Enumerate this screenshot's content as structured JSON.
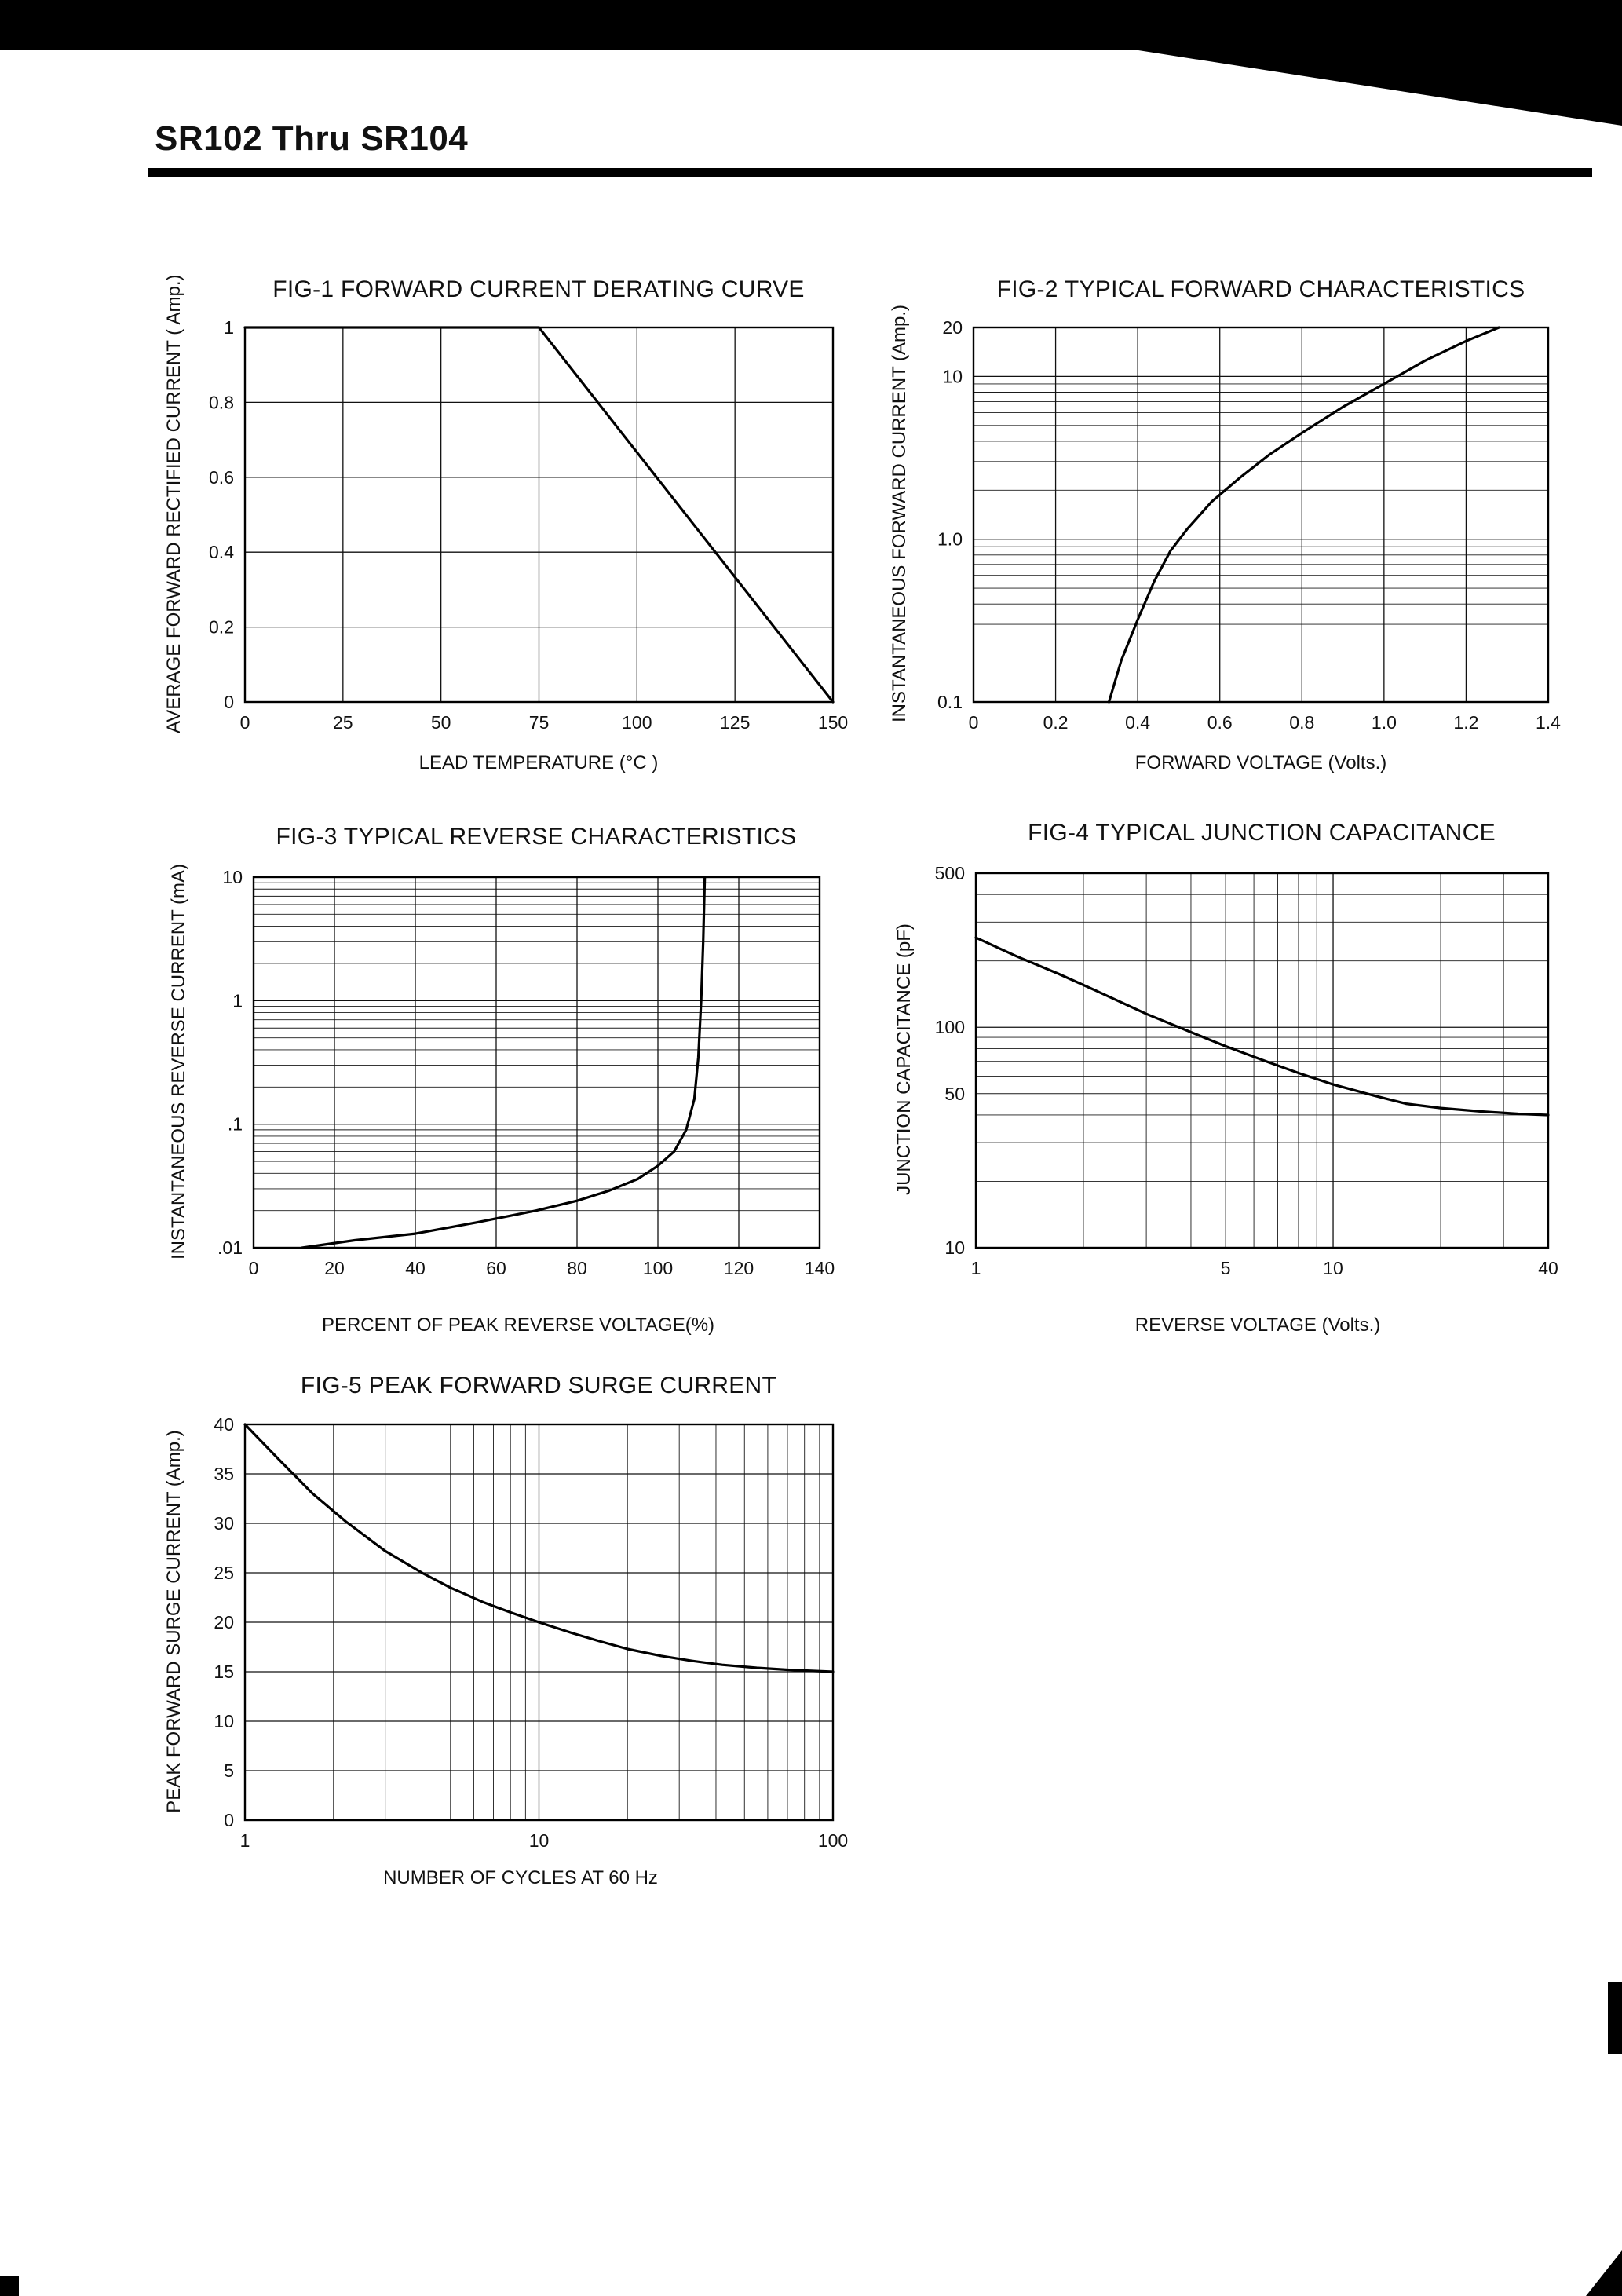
{
  "header": {
    "title": "SR102 Thru SR104"
  },
  "chart_data": [
    {
      "name": "fig1",
      "type": "line",
      "title": "FIG-1 FORWARD CURRENT DERATING CURVE",
      "xlabel": "LEAD TEMPERATURE (°C )",
      "ylabel": "AVERAGE FORWARD RECTIFIED CURRENT ( Amp.)",
      "xscale": "linear",
      "yscale": "linear",
      "xlim": [
        0,
        150
      ],
      "ylim": [
        0,
        1
      ],
      "grid": true,
      "xticks": [
        {
          "v": 0,
          "t": "0"
        },
        {
          "v": 25,
          "t": "25"
        },
        {
          "v": 50,
          "t": "50"
        },
        {
          "v": 75,
          "t": "75"
        },
        {
          "v": 100,
          "t": "100"
        },
        {
          "v": 125,
          "t": "125"
        },
        {
          "v": 150,
          "t": "150"
        }
      ],
      "yticks": [
        {
          "v": 1,
          "t": "1"
        },
        {
          "v": 0.8,
          "t": "0.8"
        },
        {
          "v": 0.6,
          "t": "0.6"
        },
        {
          "v": 0.4,
          "t": "0.4"
        },
        {
          "v": 0.2,
          "t": "0.2"
        },
        {
          "v": 0,
          "t": "0"
        }
      ],
      "series": [
        {
          "name": "derating-curve",
          "points": [
            [
              0,
              1
            ],
            [
              75,
              1
            ],
            [
              150,
              0
            ]
          ]
        }
      ]
    },
    {
      "name": "fig2",
      "type": "line",
      "title": "FIG-2 TYPICAL FORWARD CHARACTERISTICS",
      "xlabel": "FORWARD VOLTAGE (Volts.)",
      "ylabel": "INSTANTANEOUS FORWARD CURRENT (Amp.)",
      "xscale": "linear",
      "yscale": "log",
      "xlim": [
        0,
        1.4
      ],
      "ylim": [
        0.1,
        20
      ],
      "grid": true,
      "xticks": [
        {
          "v": 0,
          "t": "0"
        },
        {
          "v": 0.2,
          "t": "0.2"
        },
        {
          "v": 0.4,
          "t": "0.4"
        },
        {
          "v": 0.6,
          "t": "0.6"
        },
        {
          "v": 0.8,
          "t": "0.8"
        },
        {
          "v": 1.0,
          "t": "1.0"
        },
        {
          "v": 1.2,
          "t": "1.2"
        },
        {
          "v": 1.4,
          "t": "1.4"
        }
      ],
      "yticks": [
        {
          "v": 20,
          "t": "20"
        },
        {
          "v": 10,
          "t": "10"
        },
        {
          "v": 1.0,
          "t": "1.0"
        },
        {
          "v": 0.1,
          "t": "0.1"
        }
      ],
      "series": [
        {
          "name": "forward-characteristic",
          "points": [
            [
              0.33,
              0.1
            ],
            [
              0.36,
              0.18
            ],
            [
              0.4,
              0.32
            ],
            [
              0.44,
              0.55
            ],
            [
              0.48,
              0.85
            ],
            [
              0.52,
              1.15
            ],
            [
              0.58,
              1.7
            ],
            [
              0.65,
              2.4
            ],
            [
              0.72,
              3.3
            ],
            [
              0.8,
              4.5
            ],
            [
              0.9,
              6.5
            ],
            [
              1.0,
              9.0
            ],
            [
              1.1,
              12.5
            ],
            [
              1.2,
              16.5
            ],
            [
              1.28,
              20
            ]
          ]
        }
      ]
    },
    {
      "name": "fig3",
      "type": "line",
      "title": "FIG-3 TYPICAL REVERSE CHARACTERISTICS",
      "xlabel": "PERCENT OF PEAK REVERSE VOLTAGE(%)",
      "ylabel": "INSTANTANEOUS REVERSE CURRENT (mA)",
      "xscale": "linear",
      "yscale": "log",
      "xlim": [
        0,
        140
      ],
      "ylim": [
        0.01,
        10
      ],
      "grid": true,
      "xticks": [
        {
          "v": 0,
          "t": "0"
        },
        {
          "v": 20,
          "t": "20"
        },
        {
          "v": 40,
          "t": "40"
        },
        {
          "v": 60,
          "t": "60"
        },
        {
          "v": 80,
          "t": "80"
        },
        {
          "v": 100,
          "t": "100"
        },
        {
          "v": 120,
          "t": "120"
        },
        {
          "v": 140,
          "t": "140"
        }
      ],
      "yticks": [
        {
          "v": 10,
          "t": "10"
        },
        {
          "v": 1,
          "t": "1"
        },
        {
          "v": 0.1,
          "t": ".1"
        },
        {
          "v": 0.01,
          "t": ".01"
        }
      ],
      "series": [
        {
          "name": "reverse-characteristic",
          "points": [
            [
              12,
              0.01
            ],
            [
              25,
              0.0115
            ],
            [
              40,
              0.013
            ],
            [
              55,
              0.016
            ],
            [
              70,
              0.02
            ],
            [
              80,
              0.024
            ],
            [
              88,
              0.029
            ],
            [
              95,
              0.036
            ],
            [
              100,
              0.046
            ],
            [
              104,
              0.06
            ],
            [
              107,
              0.09
            ],
            [
              109,
              0.16
            ],
            [
              110,
              0.35
            ],
            [
              110.7,
              1.0
            ],
            [
              111.2,
              3.0
            ],
            [
              111.6,
              10
            ]
          ]
        }
      ]
    },
    {
      "name": "fig4",
      "type": "line",
      "title": "FIG-4 TYPICAL JUNCTION CAPACITANCE",
      "xlabel": "REVERSE VOLTAGE (Volts.)",
      "ylabel": "JUNCTION CAPACITANCE (pF)",
      "xscale": "log",
      "yscale": "log",
      "xlim": [
        1,
        40
      ],
      "ylim": [
        10,
        500
      ],
      "grid": true,
      "xticks": [
        {
          "v": 1,
          "t": "1"
        },
        {
          "v": 5,
          "t": "5"
        },
        {
          "v": 10,
          "t": "10"
        },
        {
          "v": 40,
          "t": "40"
        }
      ],
      "yticks": [
        {
          "v": 500,
          "t": "500"
        },
        {
          "v": 100,
          "t": "100"
        },
        {
          "v": 50,
          "t": "50"
        },
        {
          "v": 10,
          "t": "10"
        }
      ],
      "series": [
        {
          "name": "junction-capacitance",
          "points": [
            [
              1,
              255
            ],
            [
              1.3,
              210
            ],
            [
              1.7,
              175
            ],
            [
              2.2,
              145
            ],
            [
              3,
              115
            ],
            [
              4,
              95
            ],
            [
              5,
              82
            ],
            [
              6.5,
              70
            ],
            [
              8,
              62
            ],
            [
              10,
              55
            ],
            [
              13,
              49
            ],
            [
              16,
              45
            ],
            [
              20,
              43
            ],
            [
              26,
              41.5
            ],
            [
              33,
              40.5
            ],
            [
              40,
              40
            ]
          ]
        }
      ]
    },
    {
      "name": "fig5",
      "type": "line",
      "title": "FIG-5 PEAK FORWARD SURGE CURRENT",
      "xlabel": "NUMBER OF CYCLES AT 60 Hz",
      "ylabel": "PEAK FORWARD SURGE CURRENT (Amp.)",
      "xscale": "log",
      "yscale": "linear",
      "xlim": [
        1,
        100
      ],
      "ylim": [
        0,
        40
      ],
      "grid": true,
      "xticks": [
        {
          "v": 1,
          "t": "1"
        },
        {
          "v": 10,
          "t": "10"
        },
        {
          "v": 100,
          "t": "100"
        }
      ],
      "yticks": [
        {
          "v": 40,
          "t": "40"
        },
        {
          "v": 35,
          "t": "35"
        },
        {
          "v": 30,
          "t": "30"
        },
        {
          "v": 25,
          "t": "25"
        },
        {
          "v": 20,
          "t": "20"
        },
        {
          "v": 15,
          "t": "15"
        },
        {
          "v": 10,
          "t": "10"
        },
        {
          "v": 5,
          "t": "5"
        },
        {
          "v": 0,
          "t": "0"
        }
      ],
      "series": [
        {
          "name": "surge-current",
          "points": [
            [
              1,
              40
            ],
            [
              1.3,
              36.5
            ],
            [
              1.7,
              33
            ],
            [
              2.2,
              30.2
            ],
            [
              3,
              27.2
            ],
            [
              4,
              25
            ],
            [
              5,
              23.5
            ],
            [
              6.5,
              22
            ],
            [
              8,
              21
            ],
            [
              10,
              20
            ],
            [
              13,
              18.9
            ],
            [
              16,
              18.1
            ],
            [
              20,
              17.3
            ],
            [
              26,
              16.6
            ],
            [
              33,
              16.1
            ],
            [
              42,
              15.7
            ],
            [
              55,
              15.4
            ],
            [
              70,
              15.2
            ],
            [
              100,
              15
            ]
          ]
        }
      ]
    }
  ]
}
